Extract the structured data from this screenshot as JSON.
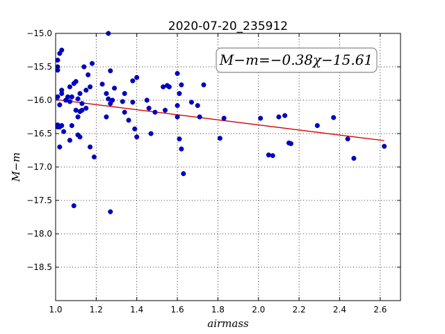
{
  "chart_data": {
    "type": "scatter",
    "title": "2020-07-20_235912",
    "xlabel": "airmass",
    "ylabel": "M−m",
    "xlim": [
      1.0,
      2.7
    ],
    "ylim": [
      -19.0,
      -15.0
    ],
    "y_inverted": true,
    "grid": true,
    "x_ticks": [
      "1.0",
      "1.2",
      "1.4",
      "1.6",
      "1.8",
      "2.0",
      "2.2",
      "2.4",
      "2.6"
    ],
    "x_tick_values": [
      1.0,
      1.2,
      1.4,
      1.6,
      1.8,
      2.0,
      2.2,
      2.4,
      2.6
    ],
    "y_ticks": [
      "−15.0",
      "−15.5",
      "−16.0",
      "−16.5",
      "−17.0",
      "−17.5",
      "−18.0",
      "−18.5"
    ],
    "y_tick_values": [
      -15.0,
      -15.5,
      -16.0,
      -16.5,
      -17.0,
      -17.5,
      -18.0,
      -18.5
    ],
    "annotation": "M−m=−0.38χ−15.61",
    "annotation_placement": "top-right",
    "fit_line": {
      "slope": -0.38,
      "intercept": -15.61,
      "x_range": [
        1.0,
        2.62
      ],
      "color": "#cc0000"
    },
    "point_color": "#0000cc",
    "points": [
      [
        1.01,
        -15.4
      ],
      [
        1.01,
        -15.5
      ],
      [
        1.01,
        -15.55
      ],
      [
        1.02,
        -15.3
      ],
      [
        1.03,
        -15.25
      ],
      [
        1.01,
        -15.95
      ],
      [
        1.03,
        -15.9
      ],
      [
        1.03,
        -15.85
      ],
      [
        1.02,
        -16.07
      ],
      [
        1.05,
        -16.0
      ],
      [
        1.07,
        -16.02
      ],
      [
        1.06,
        -15.95
      ],
      [
        1.07,
        -15.8
      ],
      [
        1.08,
        -15.95
      ],
      [
        1.09,
        -15.75
      ],
      [
        1.1,
        -15.72
      ],
      [
        1.11,
        -15.98
      ],
      [
        1.12,
        -15.9
      ],
      [
        1.13,
        -16.05
      ],
      [
        1.14,
        -15.5
      ],
      [
        1.15,
        -15.85
      ],
      [
        1.16,
        -15.62
      ],
      [
        1.17,
        -15.8
      ],
      [
        1.18,
        -15.45
      ],
      [
        1.1,
        -16.15
      ],
      [
        1.12,
        -16.17
      ],
      [
        1.13,
        -16.15
      ],
      [
        1.15,
        -16.12
      ],
      [
        1.11,
        -16.25
      ],
      [
        1.01,
        -16.37
      ],
      [
        1.01,
        -16.4
      ],
      [
        1.02,
        -16.4
      ],
      [
        1.03,
        -16.38
      ],
      [
        1.04,
        -16.47
      ],
      [
        1.08,
        -16.38
      ],
      [
        1.11,
        -16.52
      ],
      [
        1.12,
        -16.55
      ],
      [
        1.07,
        -16.6
      ],
      [
        1.02,
        -16.7
      ],
      [
        1.17,
        -16.7
      ],
      [
        1.19,
        -16.85
      ],
      [
        1.09,
        -17.58
      ],
      [
        1.23,
        -15.76
      ],
      [
        1.25,
        -15.9
      ],
      [
        1.26,
        -15.98
      ],
      [
        1.27,
        -16.05
      ],
      [
        1.28,
        -16.0
      ],
      [
        1.27,
        -15.56
      ],
      [
        1.29,
        -15.82
      ],
      [
        1.26,
        -15.0
      ],
      [
        1.25,
        -16.25
      ],
      [
        1.27,
        -17.67
      ],
      [
        1.33,
        -16.02
      ],
      [
        1.34,
        -15.9
      ],
      [
        1.34,
        -16.18
      ],
      [
        1.36,
        -16.3
      ],
      [
        1.38,
        -15.71
      ],
      [
        1.38,
        -16.03
      ],
      [
        1.39,
        -16.43
      ],
      [
        1.4,
        -15.66
      ],
      [
        1.4,
        -16.55
      ],
      [
        1.45,
        -16.0
      ],
      [
        1.46,
        -16.12
      ],
      [
        1.47,
        -16.5
      ],
      [
        1.49,
        -16.18
      ],
      [
        1.53,
        -15.8
      ],
      [
        1.54,
        -16.15
      ],
      [
        1.55,
        -15.78
      ],
      [
        1.56,
        -15.8
      ],
      [
        1.6,
        -15.6
      ],
      [
        1.61,
        -15.9
      ],
      [
        1.62,
        -15.77
      ],
      [
        1.6,
        -16.08
      ],
      [
        1.6,
        -16.25
      ],
      [
        1.61,
        -16.58
      ],
      [
        1.62,
        -16.73
      ],
      [
        1.63,
        -17.1
      ],
      [
        1.67,
        -16.03
      ],
      [
        1.7,
        -16.08
      ],
      [
        1.71,
        -16.25
      ],
      [
        1.73,
        -15.77
      ],
      [
        1.81,
        -16.57
      ],
      [
        1.83,
        -16.27
      ],
      [
        2.01,
        -16.27
      ],
      [
        2.05,
        -16.82
      ],
      [
        2.07,
        -16.83
      ],
      [
        2.1,
        -16.25
      ],
      [
        2.13,
        -16.23
      ],
      [
        2.15,
        -16.64
      ],
      [
        2.16,
        -16.65
      ],
      [
        2.29,
        -16.38
      ],
      [
        2.37,
        -16.26
      ],
      [
        2.44,
        -16.58
      ],
      [
        2.47,
        -16.87
      ],
      [
        2.62,
        -16.69
      ]
    ]
  }
}
